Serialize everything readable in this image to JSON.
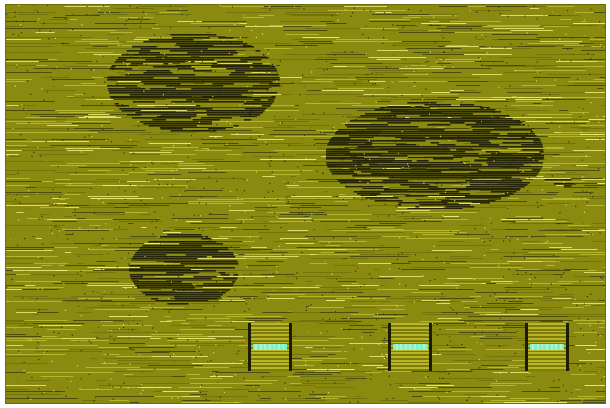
{
  "scene": {
    "background": "#8a8a10",
    "streak_colors": [
      "#1b1b05",
      "#c8c83a",
      "#f0ef80",
      "#5c5c08"
    ],
    "pad_accent": "#7ff0d0",
    "pad_count": 3
  }
}
